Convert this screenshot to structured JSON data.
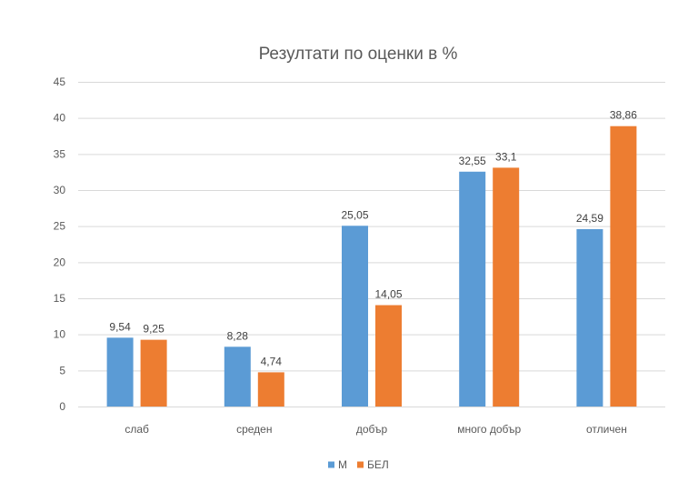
{
  "chart_data": {
    "type": "bar",
    "title": "Резултати по оценки в %",
    "categories": [
      "слаб",
      "среден",
      "добър",
      "много добър",
      "отличен"
    ],
    "series": [
      {
        "name": "М",
        "color": "#5B9BD5",
        "values": [
          9.54,
          8.28,
          25.05,
          32.55,
          24.59
        ],
        "labels": [
          "9,54",
          "8,28",
          "25,05",
          "32,55",
          "24,59"
        ]
      },
      {
        "name": "БЕЛ",
        "color": "#ED7D31",
        "values": [
          9.25,
          4.74,
          14.05,
          33.1,
          38.86
        ],
        "labels": [
          "9,25",
          "4,74",
          "14,05",
          "33,1",
          "38,86"
        ]
      }
    ],
    "xlabel": "",
    "ylabel": "",
    "ylim": [
      0,
      45
    ],
    "yticks": [
      0,
      5,
      10,
      15,
      20,
      25,
      30,
      35,
      40,
      45
    ],
    "ytick_labels": [
      "0",
      "5",
      "10",
      "15",
      "20",
      "25",
      "30",
      "35",
      "40",
      "45"
    ],
    "grid": true,
    "legend_position": "bottom"
  }
}
